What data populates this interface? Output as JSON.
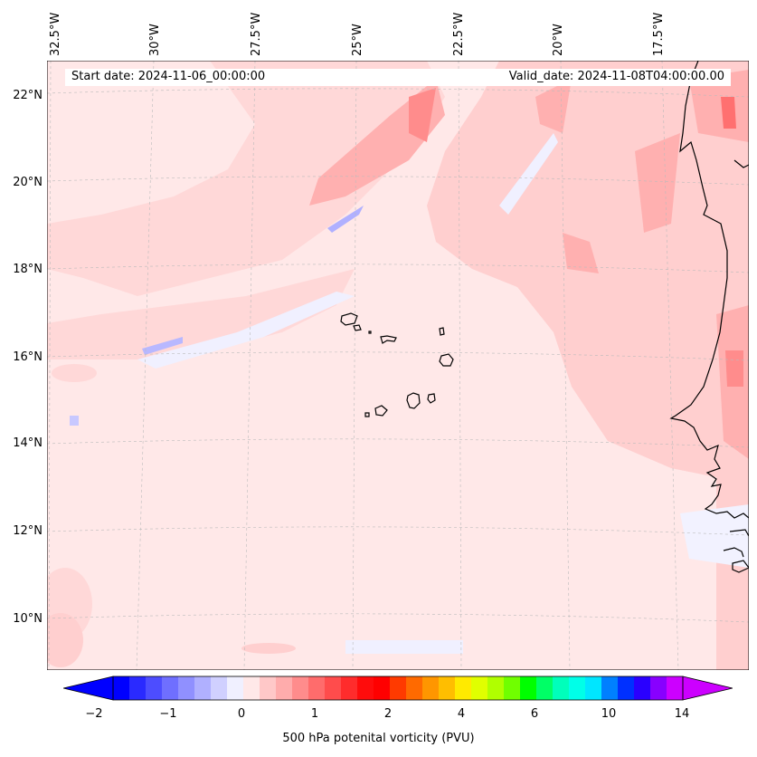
{
  "header": {
    "start_date": "Start date: 2024-11-06_00:00:00",
    "valid_date": "Valid_date: 2024-11-08T04:00:00.00"
  },
  "map": {
    "longitude_labels": [
      "32.5°W",
      "30°W",
      "27.5°W",
      "25°W",
      "22.5°W",
      "20°W",
      "17.5°W"
    ],
    "latitude_labels": [
      "22°N",
      "20°N",
      "18°N",
      "16°N",
      "14°N",
      "12°N",
      "10°N"
    ],
    "background_color": "#ffe8e8"
  },
  "colorbar": {
    "title": "500 hPa potenital vorticity (PVU)",
    "tick_labels": [
      "−2",
      "−1",
      "0",
      "1",
      "2",
      "4",
      "6",
      "10",
      "14"
    ],
    "colors": [
      "#0000ff",
      "#2a2aff",
      "#4d4dff",
      "#6f6fff",
      "#9090ff",
      "#b0b0ff",
      "#d0d0ff",
      "#f0f0ff",
      "#ffe8e8",
      "#ffc8c8",
      "#ffacac",
      "#ff8c8c",
      "#ff6c6c",
      "#ff4c4c",
      "#ff2c2c",
      "#ff0c0c",
      "#ff0000",
      "#ff3a00",
      "#ff6a00",
      "#ff9600",
      "#ffbe00",
      "#ffea00",
      "#e0ff00",
      "#b0ff00",
      "#70ff00",
      "#00ff00",
      "#00ff66",
      "#00ffbb",
      "#00ffe8",
      "#00e6ff",
      "#0080ff",
      "#0030ff",
      "#2a00ff",
      "#8800ff",
      "#cc00ff"
    ],
    "under_color": "#0000ff",
    "over_color": "#cc00ff"
  }
}
